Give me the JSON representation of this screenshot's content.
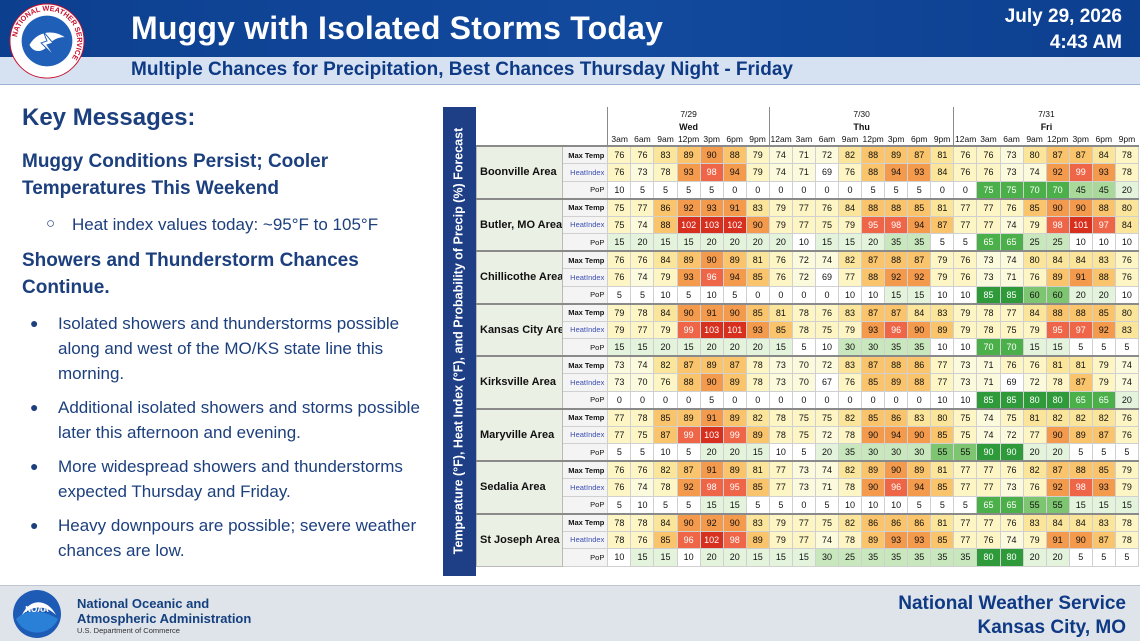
{
  "header": {
    "title": "Muggy with Isolated Storms Today",
    "date": "July 29, 2026",
    "time": "4:43 AM",
    "subtitle": "Multiple Chances for Precipitation, Best Chances Thursday Night - Friday",
    "logo_ring_text": "NATIONAL WEATHER SERVICE"
  },
  "messages": {
    "heading": "Key Messages:",
    "section1": "Muggy Conditions Persist; Cooler Temperatures This Weekend",
    "section1_sub": "Heat index values today: ~95°F to 105°F",
    "section2": "Showers and Thunderstorm Chances Continue.",
    "bullets": [
      "Isolated showers and thunderstorms possible along and west of the MO/KS state line this morning.",
      "Additional isolated showers and storms possible later this afternoon and evening.",
      "More widespread showers and thunderstorms expected Thursday and Friday.",
      "Heavy downpours are possible; severe weather chances are low."
    ]
  },
  "table": {
    "side_label": "Temperature (°F), Heat Index (°F), and Probability of Precip (%) Forecast",
    "days": [
      {
        "date": "7/29",
        "day": "Wed"
      },
      {
        "date": "7/30",
        "day": "Thu"
      },
      {
        "date": "7/31",
        "day": "Fri"
      }
    ],
    "times": [
      "3am",
      "6am",
      "9am",
      "12pm",
      "3pm",
      "6pm",
      "9pm",
      "12am",
      "3am",
      "6am",
      "9am",
      "12pm",
      "3pm",
      "6pm",
      "9pm",
      "12am",
      "3am",
      "6am",
      "9am",
      "12pm",
      "3pm",
      "6pm",
      "9pm"
    ],
    "var_labels": [
      "Max Temp",
      "HeatIndex",
      "PoP"
    ],
    "areas": [
      {
        "name": "Boonville Area",
        "max_temp": [
          76,
          76,
          83,
          89,
          90,
          88,
          79,
          74,
          71,
          72,
          82,
          88,
          89,
          87,
          81,
          76,
          76,
          73,
          80,
          87,
          87,
          84,
          78
        ],
        "heat_index": [
          76,
          73,
          78,
          93,
          98,
          94,
          79,
          74,
          71,
          69,
          76,
          88,
          94,
          93,
          84,
          76,
          76,
          73,
          74,
          92,
          99,
          93,
          78
        ],
        "pop": [
          10,
          5,
          5,
          5,
          5,
          0,
          0,
          0,
          0,
          0,
          0,
          5,
          5,
          5,
          0,
          0,
          75,
          75,
          70,
          70,
          45,
          45,
          20
        ]
      },
      {
        "name": "Butler, MO Area",
        "max_temp": [
          75,
          77,
          86,
          92,
          93,
          91,
          83,
          79,
          77,
          76,
          84,
          88,
          88,
          85,
          81,
          77,
          77,
          76,
          85,
          90,
          90,
          88,
          80
        ],
        "heat_index": [
          75,
          74,
          88,
          102,
          103,
          102,
          90,
          79,
          77,
          75,
          79,
          95,
          98,
          94,
          87,
          77,
          77,
          74,
          79,
          98,
          101,
          97,
          84
        ],
        "pop": [
          15,
          20,
          15,
          15,
          20,
          20,
          20,
          20,
          10,
          15,
          15,
          20,
          35,
          35,
          5,
          5,
          65,
          65,
          25,
          25,
          10,
          10,
          10
        ]
      },
      {
        "name": "Chillicothe Area",
        "max_temp": [
          76,
          76,
          84,
          89,
          90,
          89,
          81,
          76,
          72,
          74,
          82,
          87,
          88,
          87,
          79,
          76,
          73,
          74,
          80,
          84,
          84,
          83,
          76
        ],
        "heat_index": [
          76,
          74,
          79,
          93,
          96,
          94,
          85,
          76,
          72,
          69,
          77,
          88,
          92,
          92,
          79,
          76,
          73,
          71,
          76,
          89,
          91,
          88,
          76
        ],
        "pop": [
          5,
          5,
          10,
          5,
          10,
          5,
          0,
          0,
          0,
          0,
          10,
          10,
          15,
          15,
          10,
          10,
          85,
          85,
          60,
          60,
          20,
          20,
          10
        ]
      },
      {
        "name": "Kansas City Area",
        "max_temp": [
          79,
          78,
          84,
          90,
          91,
          90,
          85,
          81,
          78,
          76,
          83,
          87,
          87,
          84,
          83,
          79,
          78,
          77,
          84,
          88,
          88,
          85,
          80
        ],
        "heat_index": [
          79,
          77,
          79,
          99,
          103,
          101,
          93,
          85,
          78,
          75,
          79,
          93,
          96,
          90,
          89,
          79,
          78,
          75,
          79,
          95,
          97,
          92,
          83
        ],
        "pop": [
          15,
          15,
          20,
          15,
          20,
          20,
          20,
          15,
          5,
          10,
          30,
          30,
          35,
          35,
          10,
          10,
          70,
          70,
          15,
          15,
          5,
          5,
          5
        ]
      },
      {
        "name": "Kirksville Area",
        "max_temp": [
          73,
          74,
          82,
          87,
          89,
          87,
          78,
          73,
          70,
          72,
          83,
          87,
          88,
          86,
          77,
          73,
          71,
          76,
          76,
          81,
          81,
          79,
          74
        ],
        "heat_index": [
          73,
          70,
          76,
          88,
          90,
          89,
          78,
          73,
          70,
          67,
          76,
          85,
          89,
          88,
          77,
          73,
          71,
          69,
          72,
          78,
          87,
          79,
          74
        ],
        "pop": [
          0,
          0,
          0,
          0,
          5,
          0,
          0,
          0,
          0,
          0,
          0,
          0,
          0,
          0,
          10,
          10,
          85,
          85,
          80,
          80,
          65,
          65,
          20
        ]
      },
      {
        "name": "Maryville Area",
        "max_temp": [
          77,
          78,
          85,
          89,
          91,
          89,
          82,
          78,
          75,
          75,
          82,
          85,
          86,
          83,
          80,
          75,
          74,
          75,
          81,
          82,
          82,
          82,
          76
        ],
        "heat_index": [
          77,
          75,
          87,
          99,
          103,
          99,
          89,
          78,
          75,
          72,
          78,
          90,
          94,
          90,
          85,
          75,
          74,
          72,
          77,
          90,
          89,
          87,
          76
        ],
        "pop": [
          5,
          5,
          10,
          5,
          20,
          20,
          15,
          10,
          5,
          20,
          35,
          30,
          30,
          30,
          55,
          55,
          90,
          90,
          20,
          20,
          5,
          5,
          5
        ]
      },
      {
        "name": "Sedalia Area",
        "max_temp": [
          76,
          76,
          82,
          87,
          91,
          89,
          81,
          77,
          73,
          74,
          82,
          89,
          90,
          89,
          81,
          77,
          77,
          76,
          82,
          87,
          88,
          85,
          79
        ],
        "heat_index": [
          76,
          74,
          78,
          92,
          98,
          95,
          85,
          77,
          73,
          71,
          78,
          90,
          96,
          94,
          85,
          77,
          77,
          73,
          76,
          92,
          98,
          93,
          79
        ],
        "pop": [
          5,
          10,
          5,
          5,
          15,
          15,
          5,
          5,
          0,
          5,
          10,
          10,
          10,
          5,
          5,
          5,
          65,
          65,
          55,
          55,
          15,
          15,
          15
        ]
      },
      {
        "name": "St Joseph Area",
        "max_temp": [
          78,
          78,
          84,
          90,
          92,
          90,
          83,
          79,
          77,
          75,
          82,
          86,
          86,
          86,
          81,
          77,
          77,
          76,
          83,
          84,
          84,
          83,
          78
        ],
        "heat_index": [
          78,
          76,
          85,
          96,
          102,
          98,
          89,
          79,
          77,
          74,
          78,
          89,
          93,
          93,
          85,
          77,
          76,
          74,
          79,
          91,
          90,
          87,
          78
        ],
        "pop": [
          10,
          15,
          15,
          10,
          20,
          20,
          15,
          15,
          15,
          30,
          25,
          35,
          35,
          35,
          35,
          35,
          80,
          80,
          20,
          20,
          5,
          5,
          5
        ]
      }
    ]
  },
  "footer": {
    "noaa_line1": "National Oceanic and",
    "noaa_line2": "Atmospheric Administration",
    "noaa_line3": "U.S. Department of Commerce",
    "noaa_logo_text": "NOAA",
    "office_line1": "National Weather Service",
    "office_line2": "Kansas City, MO"
  },
  "colors": {
    "header_blue": "#124a9e",
    "text_blue": "#1c3f7d"
  }
}
